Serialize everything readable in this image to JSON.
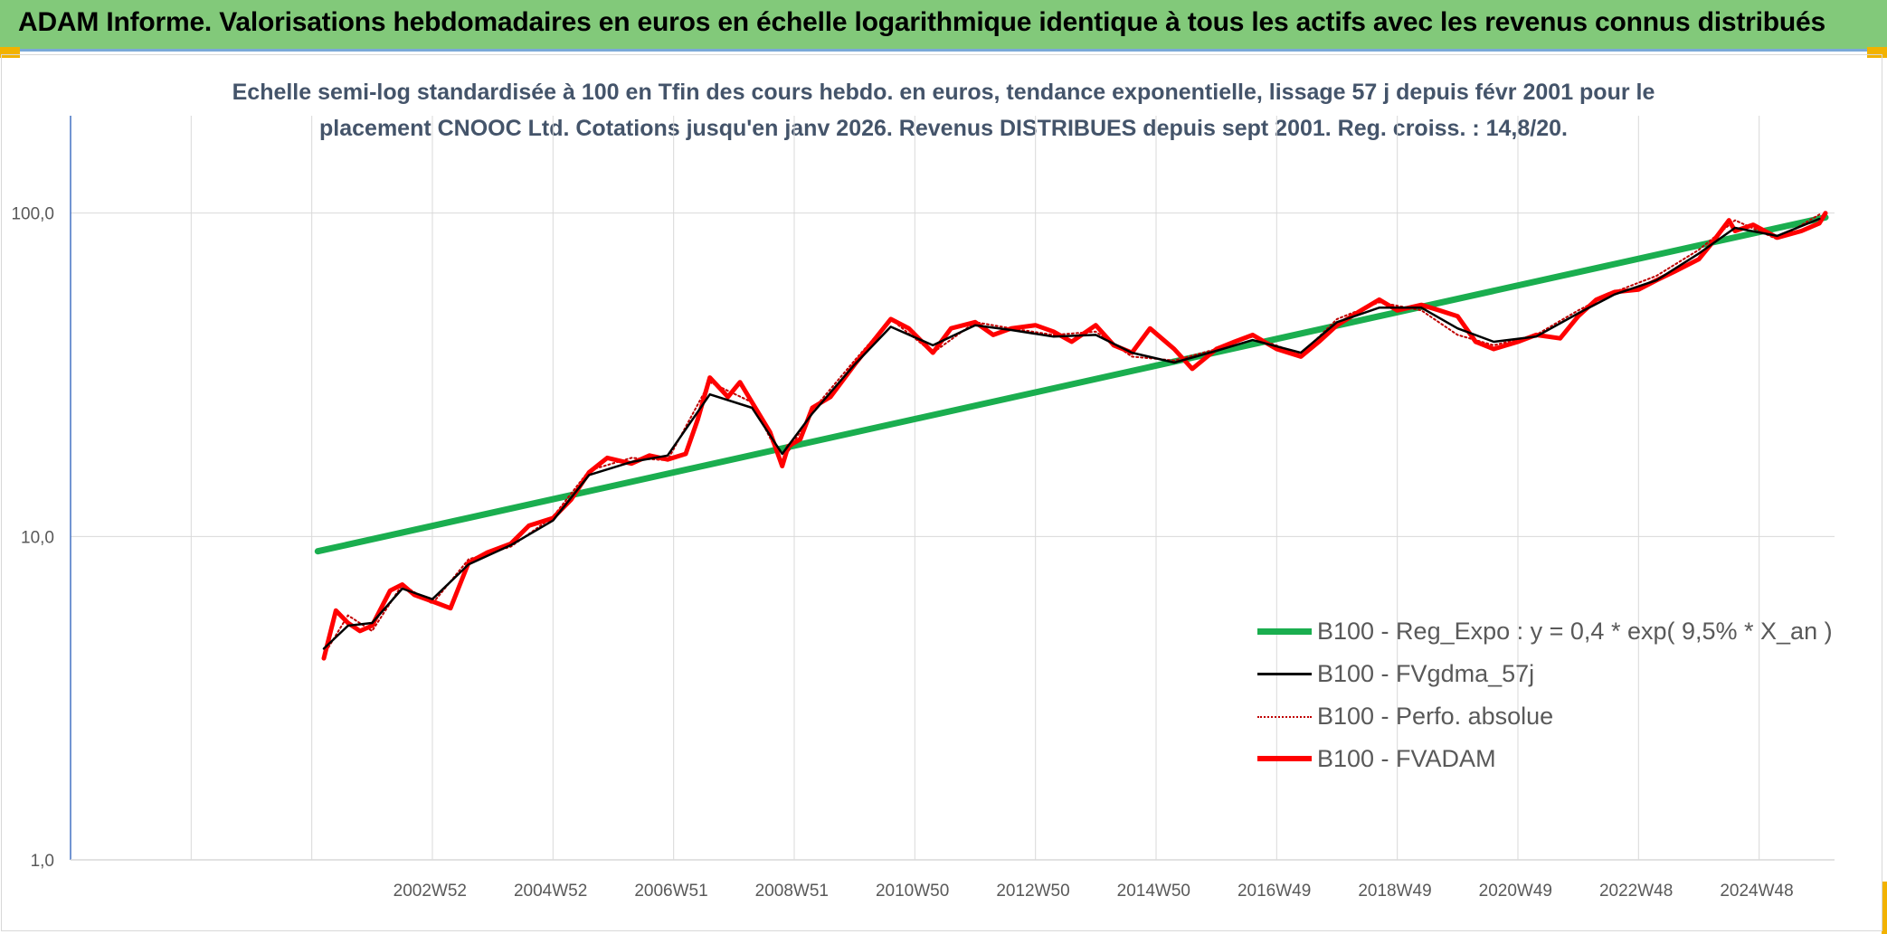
{
  "header": {
    "title": "ADAM Informe. Valorisations hebdomadaires en euros en échelle logarithmique identique à tous les actifs avec les revenus connus distribués"
  },
  "chart_data": {
    "type": "line",
    "subtitle_lines": [
      "Echelle semi-log standardisée à 100 en Tfin des cours hebdo. en euros, tendance exponentielle, lissage 57 j depuis févr 2001 pour le",
      "placement CNOOC Ltd. Cotations jusqu'en janv 2026. Revenus DISTRIBUES depuis sept 2001. Reg. croiss. : 14,8/20."
    ],
    "y_scale": "log",
    "ylim": [
      1,
      200
    ],
    "xlim": [
      1997.0,
      2026.25
    ],
    "y_ticks": [
      {
        "value": 1,
        "label": "1,0"
      },
      {
        "value": 10,
        "label": "10,0"
      },
      {
        "value": 100,
        "label": "100,0"
      }
    ],
    "x_ticks": [
      {
        "value": 2002.96,
        "label": "2002W52"
      },
      {
        "value": 2004.96,
        "label": "2004W52"
      },
      {
        "value": 2006.96,
        "label": "2006W51"
      },
      {
        "value": 2008.96,
        "label": "2008W51"
      },
      {
        "value": 2010.96,
        "label": "2010W50"
      },
      {
        "value": 2012.96,
        "label": "2012W50"
      },
      {
        "value": 2014.96,
        "label": "2014W50"
      },
      {
        "value": 2016.96,
        "label": "2016W49"
      },
      {
        "value": 2018.96,
        "label": "2018W49"
      },
      {
        "value": 2020.96,
        "label": "2020W49"
      },
      {
        "value": 2022.96,
        "label": "2022W48"
      },
      {
        "value": 2024.96,
        "label": "2024W48"
      }
    ],
    "grid": true,
    "legend_position": "bottom-right",
    "series": [
      {
        "name": "B100 - Reg_Expo : y = 0,4 * exp( 9,5% *  X_an )",
        "color": "#1aae4f",
        "style": "solid-thick",
        "x": [
          2001.1,
          2026.1
        ],
        "y": [
          9.0,
          97.0
        ]
      },
      {
        "name": "B100 - FVgdma_57j",
        "color": "#000000",
        "style": "solid",
        "x": [
          2001.2,
          2001.6,
          2002.0,
          2002.5,
          2003.0,
          2003.6,
          2004.3,
          2005.0,
          2005.6,
          2006.3,
          2006.9,
          2007.6,
          2008.3,
          2008.8,
          2009.3,
          2010.0,
          2010.6,
          2011.3,
          2012.0,
          2012.6,
          2013.3,
          2014.0,
          2014.6,
          2015.3,
          2016.0,
          2016.6,
          2017.4,
          2018.0,
          2018.7,
          2019.4,
          2020.0,
          2020.6,
          2021.3,
          2022.0,
          2022.6,
          2023.3,
          2024.0,
          2024.6,
          2025.3,
          2026.0
        ],
        "y": [
          4.5,
          5.3,
          5.4,
          6.9,
          6.4,
          8.2,
          9.4,
          11.2,
          15.5,
          17.0,
          17.8,
          27.5,
          25.0,
          18.0,
          24.0,
          34.0,
          44.5,
          39.0,
          45.0,
          43.5,
          41.5,
          42.0,
          37.0,
          34.5,
          37.5,
          40.5,
          37.0,
          46.0,
          51.0,
          51.0,
          44.0,
          40.0,
          41.5,
          49.0,
          56.0,
          62.0,
          75.0,
          90.0,
          85.0,
          96.0
        ]
      },
      {
        "name": "B100 - Perfo. absolue",
        "color": "#c00000",
        "style": "dotted",
        "x": [
          2001.2,
          2001.6,
          2002.0,
          2002.5,
          2003.0,
          2003.6,
          2004.3,
          2005.0,
          2005.6,
          2006.3,
          2006.9,
          2007.6,
          2008.3,
          2008.8,
          2009.3,
          2010.0,
          2010.6,
          2011.3,
          2012.0,
          2012.6,
          2013.3,
          2014.0,
          2014.6,
          2015.3,
          2016.0,
          2016.6,
          2017.4,
          2018.0,
          2018.7,
          2019.4,
          2020.0,
          2020.6,
          2021.3,
          2022.0,
          2022.6,
          2023.3,
          2024.0,
          2024.6,
          2025.3,
          2026.0
        ],
        "y": [
          4.3,
          5.7,
          5.1,
          7.1,
          6.2,
          8.5,
          9.3,
          11.5,
          16.0,
          17.5,
          17.2,
          30.0,
          26.0,
          17.0,
          24.5,
          35.0,
          47.0,
          37.0,
          46.0,
          44.0,
          42.0,
          43.0,
          36.0,
          35.0,
          38.0,
          41.5,
          36.5,
          47.0,
          53.0,
          50.0,
          42.0,
          39.0,
          42.0,
          50.0,
          57.0,
          64.0,
          77.0,
          95.0,
          83.0,
          99.0
        ]
      },
      {
        "name": "B100 - FVADAM",
        "color": "#ff0000",
        "style": "solid-thick",
        "x": [
          2001.2,
          2001.4,
          2001.6,
          2001.8,
          2002.0,
          2002.3,
          2002.5,
          2002.7,
          2003.0,
          2003.3,
          2003.6,
          2003.9,
          2004.3,
          2004.6,
          2005.0,
          2005.3,
          2005.6,
          2005.9,
          2006.3,
          2006.6,
          2006.9,
          2007.2,
          2007.4,
          2007.6,
          2007.9,
          2008.1,
          2008.3,
          2008.6,
          2008.8,
          2008.9,
          2009.1,
          2009.3,
          2009.6,
          2010.0,
          2010.3,
          2010.6,
          2010.9,
          2011.3,
          2011.6,
          2012.0,
          2012.3,
          2012.6,
          2013.0,
          2013.3,
          2013.6,
          2014.0,
          2014.3,
          2014.6,
          2014.9,
          2015.3,
          2015.6,
          2016.0,
          2016.3,
          2016.6,
          2017.0,
          2017.4,
          2017.7,
          2018.0,
          2018.4,
          2018.7,
          2019.0,
          2019.4,
          2019.7,
          2020.0,
          2020.3,
          2020.6,
          2021.0,
          2021.3,
          2021.7,
          2022.0,
          2022.3,
          2022.6,
          2023.0,
          2023.3,
          2023.6,
          2024.0,
          2024.2,
          2024.5,
          2024.6,
          2024.9,
          2025.3,
          2025.7,
          2026.0,
          2026.1
        ],
        "y": [
          4.2,
          5.9,
          5.4,
          5.1,
          5.3,
          6.8,
          7.1,
          6.6,
          6.3,
          6.0,
          8.3,
          8.9,
          9.5,
          10.8,
          11.4,
          13.0,
          15.8,
          17.5,
          16.8,
          17.8,
          17.3,
          18.0,
          23.0,
          31.0,
          27.0,
          30.0,
          26.0,
          21.0,
          16.5,
          19.0,
          20.0,
          25.0,
          27.0,
          34.0,
          40.0,
          47.0,
          44.0,
          37.0,
          44.0,
          46.0,
          42.0,
          44.0,
          45.0,
          43.0,
          40.0,
          45.0,
          39.0,
          37.0,
          44.0,
          38.0,
          33.0,
          38.0,
          40.0,
          42.0,
          38.0,
          36.0,
          40.0,
          45.0,
          50.0,
          54.0,
          50.0,
          52.0,
          50.0,
          48.0,
          40.0,
          38.0,
          40.0,
          42.0,
          41.0,
          48.0,
          54.0,
          57.0,
          58.0,
          62.0,
          66.0,
          72.0,
          80.0,
          95.0,
          88.0,
          92.0,
          84.0,
          88.0,
          93.0,
          100.0
        ]
      }
    ]
  }
}
